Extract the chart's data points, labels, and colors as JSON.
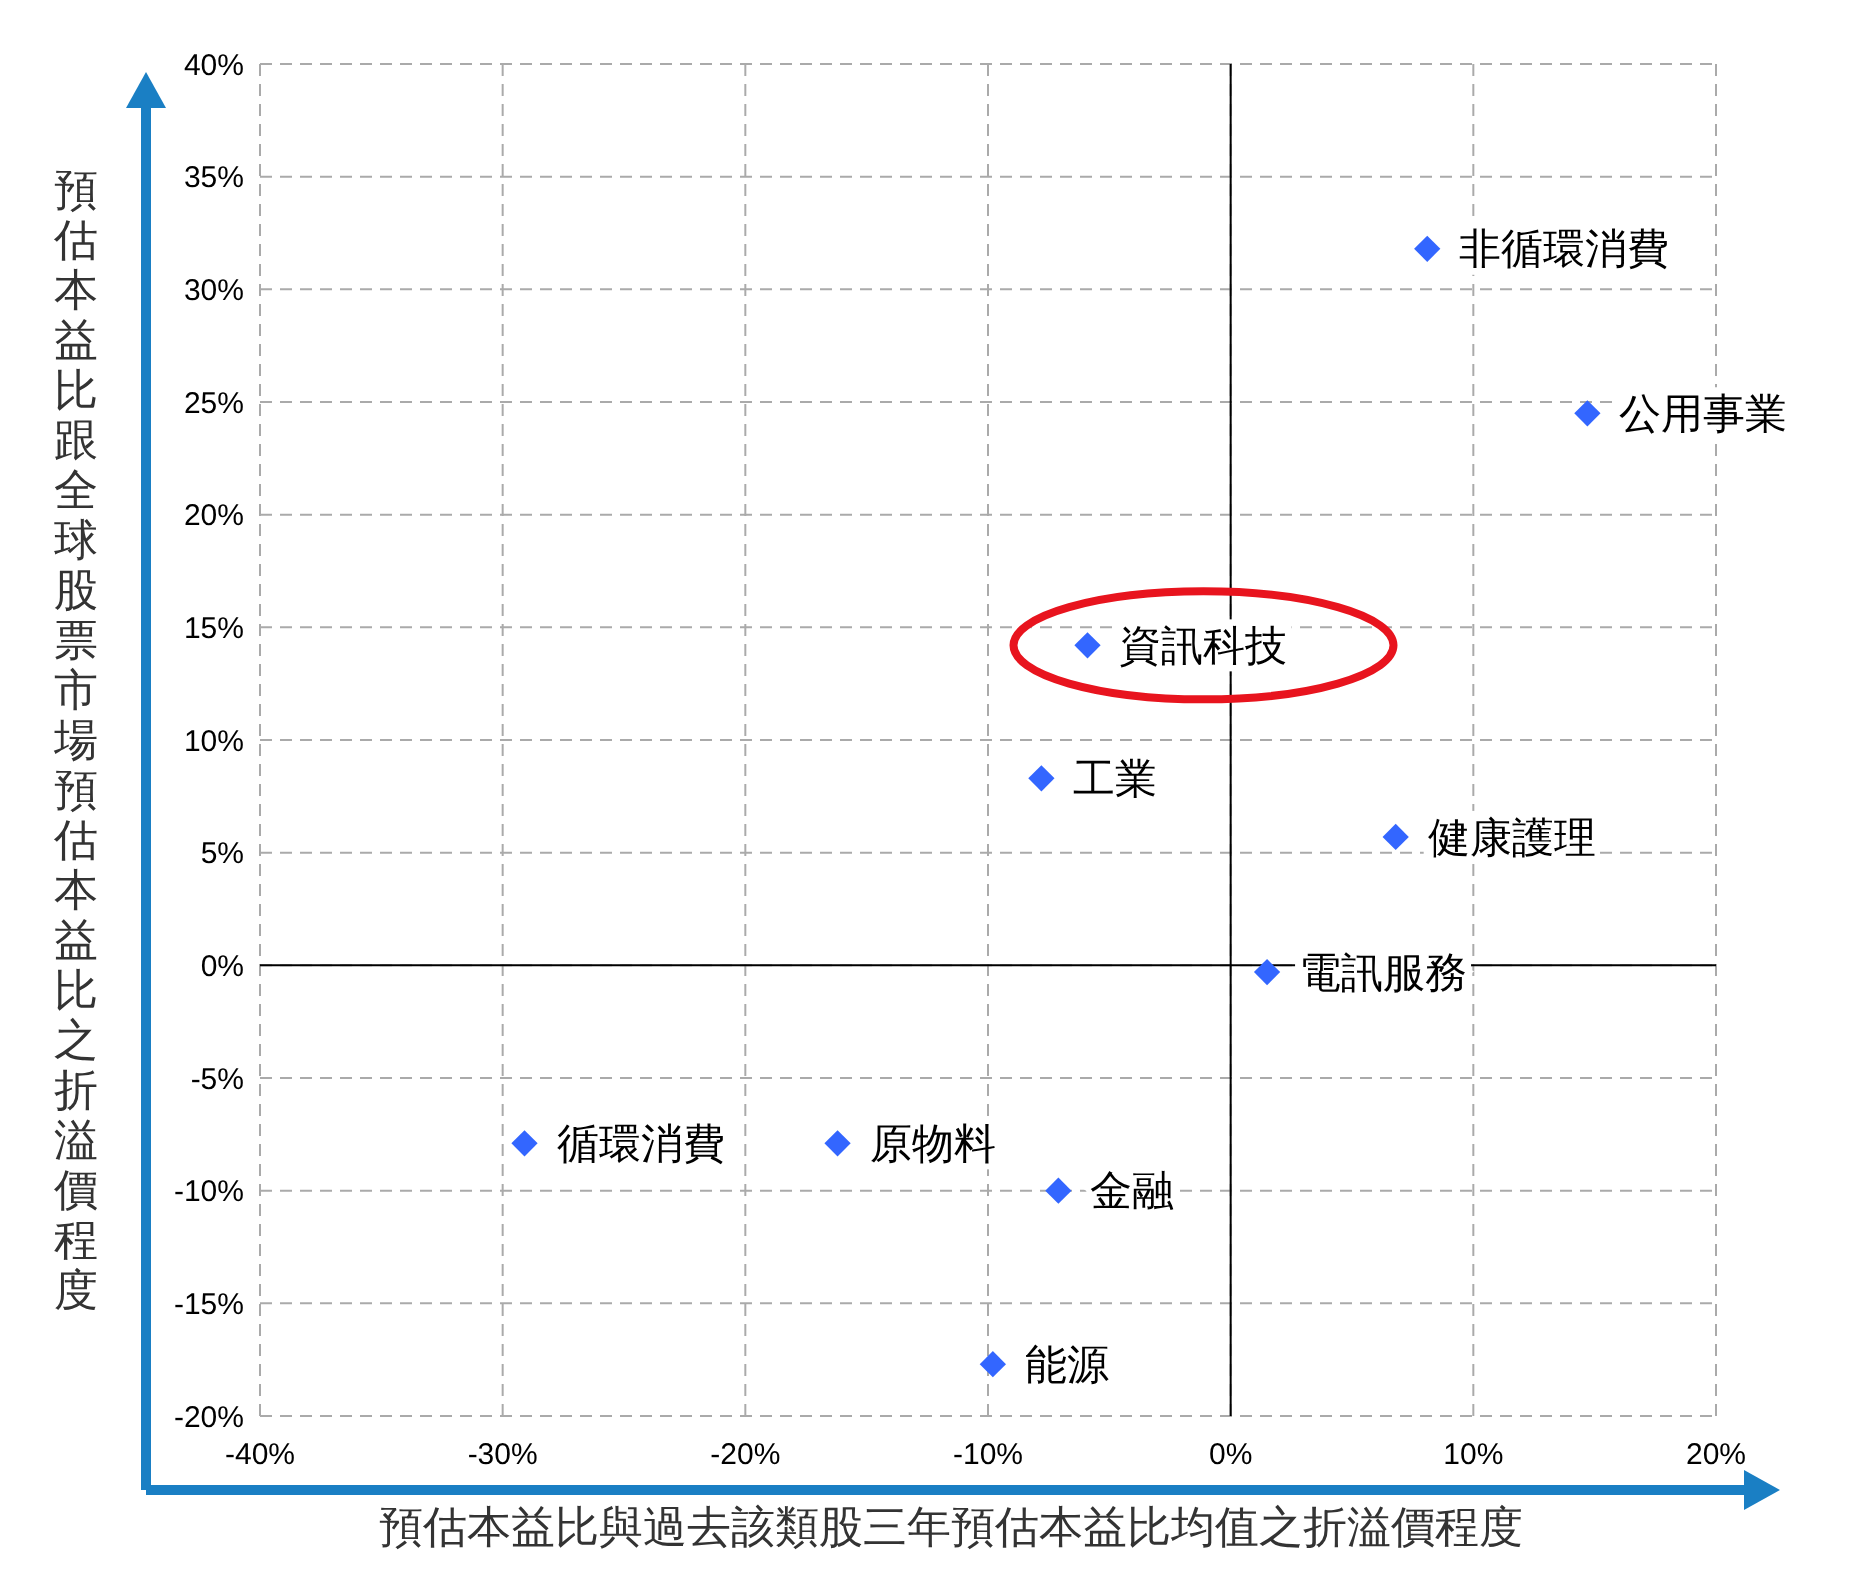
{
  "chart_data": {
    "type": "scatter",
    "xlabel": "預估本益比與過去該類股三年預估本益比均值之折溢價程度",
    "ylabel": "預估本益比跟全球股票市場預估本益比之折溢價程度",
    "xlim": [
      -40,
      20
    ],
    "ylim": [
      -20,
      40
    ],
    "xticks": [
      {
        "value": -40,
        "label": "-40%"
      },
      {
        "value": -30,
        "label": "-30%"
      },
      {
        "value": -20,
        "label": "-20%"
      },
      {
        "value": -10,
        "label": "-10%"
      },
      {
        "value": 0,
        "label": "0%"
      },
      {
        "value": 10,
        "label": "10%"
      },
      {
        "value": 20,
        "label": "20%"
      }
    ],
    "yticks": [
      {
        "value": -20,
        "label": "-20%"
      },
      {
        "value": -15,
        "label": "-15%"
      },
      {
        "value": -10,
        "label": "-10%"
      },
      {
        "value": -5,
        "label": "-5%"
      },
      {
        "value": 0,
        "label": "0%"
      },
      {
        "value": 5,
        "label": "5%"
      },
      {
        "value": 10,
        "label": "10%"
      },
      {
        "value": 15,
        "label": "15%"
      },
      {
        "value": 20,
        "label": "20%"
      },
      {
        "value": 25,
        "label": "25%"
      },
      {
        "value": 30,
        "label": "30%"
      },
      {
        "value": 35,
        "label": "35%"
      },
      {
        "value": 40,
        "label": "40%"
      }
    ],
    "grid": true,
    "legend": false,
    "marker": "diamond",
    "series": [
      {
        "name": "非循環消費",
        "color": "#3366ff",
        "x": [
          8.1
        ],
        "values": [
          31.8
        ]
      },
      {
        "name": "公用事業",
        "color": "#3366ff",
        "x": [
          14.7
        ],
        "values": [
          24.5
        ]
      },
      {
        "name": "資訊科技",
        "color": "#3366ff",
        "x": [
          -5.9
        ],
        "values": [
          14.2
        ]
      },
      {
        "name": "工業",
        "color": "#3366ff",
        "x": [
          -7.8
        ],
        "values": [
          8.3
        ]
      },
      {
        "name": "健康護理",
        "color": "#3366ff",
        "x": [
          6.8
        ],
        "values": [
          5.7
        ]
      },
      {
        "name": "電訊服務",
        "color": "#3366ff",
        "x": [
          1.5
        ],
        "values": [
          -0.3
        ]
      },
      {
        "name": "循環消費",
        "color": "#3366ff",
        "x": [
          -29.1
        ],
        "values": [
          -7.9
        ]
      },
      {
        "name": "原物料",
        "color": "#3366ff",
        "x": [
          -16.2
        ],
        "values": [
          -7.9
        ]
      },
      {
        "name": "金融",
        "color": "#3366ff",
        "x": [
          -7.1
        ],
        "values": [
          -10.0
        ]
      },
      {
        "name": "能源",
        "color": "#3366ff",
        "x": [
          -9.8
        ],
        "values": [
          -17.7
        ]
      }
    ]
  }
}
